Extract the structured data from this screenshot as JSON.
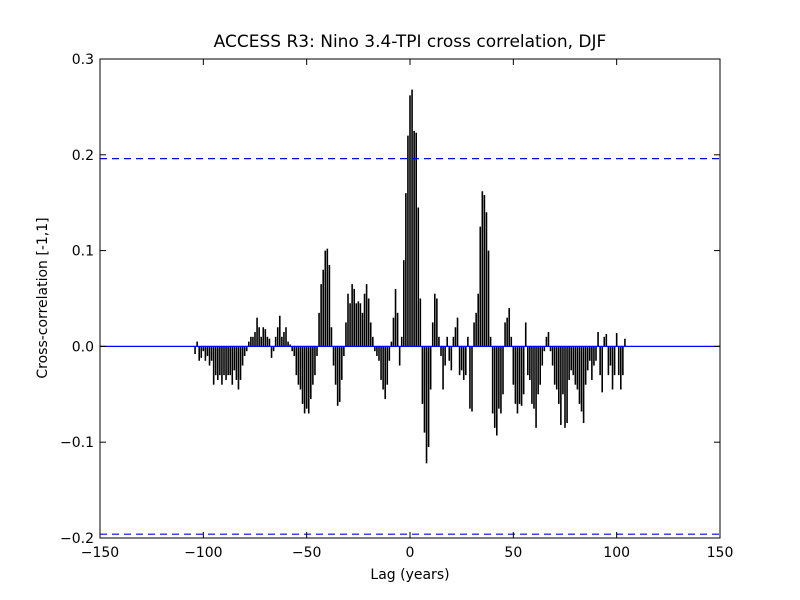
{
  "chart_data": {
    "type": "xcorr",
    "title": "ACCESS R3: Nino 3.4-TPI cross correlation, DJF",
    "xlabel": "Lag (years)",
    "ylabel": "Cross-correlation [-1,1]",
    "xlim": [
      -150,
      150
    ],
    "ylim": [
      -0.2,
      0.3
    ],
    "xticks": [
      {
        "value": -150,
        "label": "−150"
      },
      {
        "value": -100,
        "label": "−100"
      },
      {
        "value": -50,
        "label": "−50"
      },
      0,
      50,
      100,
      150
    ],
    "yticks": [
      {
        "value": -0.2,
        "label": "−0.2"
      },
      {
        "value": -0.1,
        "label": "−0.1"
      },
      {
        "value": 0,
        "label": "0.0"
      },
      0.1,
      0.2,
      0.3
    ],
    "color": "#000000",
    "hline_color": "#0000ff",
    "hlines": [
      {
        "value": 0,
        "dash": "solid"
      },
      {
        "value": 0.196,
        "dash": "dashed"
      },
      {
        "value": -0.196,
        "dash": "dashed"
      }
    ],
    "x": [
      -104,
      -103,
      -102,
      -101,
      -100,
      -99,
      -98,
      -97,
      -96,
      -95,
      -94,
      -93,
      -92,
      -91,
      -90,
      -89,
      -88,
      -87,
      -86,
      -85,
      -84,
      -83,
      -82,
      -81,
      -80,
      -79,
      -78,
      -77,
      -76,
      -75,
      -74,
      -73,
      -72,
      -71,
      -70,
      -69,
      -68,
      -67,
      -66,
      -65,
      -64,
      -63,
      -62,
      -61,
      -60,
      -59,
      -58,
      -57,
      -56,
      -55,
      -54,
      -53,
      -52,
      -51,
      -50,
      -49,
      -48,
      -47,
      -46,
      -45,
      -44,
      -43,
      -42,
      -41,
      -40,
      -39,
      -38,
      -37,
      -36,
      -35,
      -34,
      -33,
      -32,
      -31,
      -30,
      -29,
      -28,
      -27,
      -26,
      -25,
      -24,
      -23,
      -22,
      -21,
      -20,
      -19,
      -18,
      -17,
      -16,
      -15,
      -14,
      -13,
      -12,
      -11,
      -10,
      -9,
      -8,
      -7,
      -6,
      -5,
      -4,
      -3,
      -2,
      -1,
      0,
      1,
      2,
      3,
      4,
      5,
      6,
      7,
      8,
      9,
      10,
      11,
      12,
      13,
      14,
      15,
      16,
      17,
      18,
      19,
      20,
      21,
      22,
      23,
      24,
      25,
      26,
      27,
      28,
      29,
      30,
      31,
      32,
      33,
      34,
      35,
      36,
      37,
      38,
      39,
      40,
      41,
      42,
      43,
      44,
      45,
      46,
      47,
      48,
      49,
      50,
      51,
      52,
      53,
      54,
      55,
      56,
      57,
      58,
      59,
      60,
      61,
      62,
      63,
      64,
      65,
      66,
      67,
      68,
      69,
      70,
      71,
      72,
      73,
      74,
      75,
      76,
      77,
      78,
      79,
      80,
      81,
      82,
      83,
      84,
      85,
      86,
      87,
      88,
      89,
      90,
      91,
      92,
      93,
      94,
      95,
      96,
      97,
      98,
      99,
      100,
      101,
      102,
      103,
      104
    ],
    "values": [
      -0.008,
      0.005,
      -0.015,
      -0.012,
      -0.005,
      -0.015,
      -0.01,
      -0.02,
      -0.015,
      -0.04,
      -0.03,
      -0.035,
      -0.03,
      -0.04,
      -0.03,
      -0.035,
      -0.03,
      -0.03,
      -0.04,
      -0.025,
      -0.035,
      -0.045,
      -0.035,
      -0.02,
      -0.01,
      -0.005,
      0.005,
      0.01,
      0.01,
      0.015,
      0.03,
      0.02,
      0.01,
      0.02,
      0.018,
      0.01,
      0.008,
      -0.012,
      -0.005,
      0.01,
      0.02,
      0.032,
      0.01,
      0.015,
      0.02,
      0.005,
      0.002,
      -0.005,
      -0.01,
      -0.03,
      -0.04,
      -0.045,
      -0.06,
      -0.07,
      -0.065,
      -0.07,
      -0.055,
      -0.04,
      -0.03,
      -0.01,
      0.035,
      0.065,
      0.08,
      0.1,
      0.102,
      0.085,
      0.02,
      -0.02,
      -0.04,
      -0.062,
      -0.058,
      -0.035,
      -0.01,
      0.025,
      0.055,
      0.045,
      0.065,
      0.06,
      0.045,
      0.047,
      0.045,
      0.035,
      0.055,
      0.065,
      0.05,
      0.025,
      0.01,
      -0.005,
      -0.01,
      -0.015,
      -0.035,
      -0.045,
      -0.055,
      -0.04,
      -0.015,
      0.005,
      0.03,
      0.06,
      0.035,
      -0.02,
      0.01,
      0.09,
      0.16,
      0.22,
      0.262,
      0.268,
      0.225,
      0.223,
      0.145,
      0.05,
      -0.06,
      -0.09,
      -0.122,
      -0.105,
      -0.045,
      0.025,
      0.055,
      0.05,
      0.01,
      -0.01,
      -0.045,
      -0.02,
      0.01,
      -0.015,
      -0.025,
      0.01,
      0.02,
      0.03,
      -0.03,
      -0.025,
      -0.035,
      -0.03,
      0.01,
      -0.065,
      -0.068,
      0.025,
      0.035,
      0.055,
      0.125,
      0.162,
      0.158,
      0.14,
      0.1,
      0.01,
      -0.07,
      -0.085,
      -0.093,
      -0.065,
      -0.07,
      -0.05,
      0.025,
      0.03,
      0.04,
      0.01,
      -0.04,
      -0.06,
      -0.07,
      -0.06,
      -0.062,
      -0.05,
      0.025,
      -0.03,
      -0.035,
      -0.06,
      -0.065,
      -0.085,
      -0.05,
      -0.04,
      -0.02,
      -0.005,
      0.01,
      0.015,
      -0.005,
      -0.02,
      -0.04,
      -0.045,
      -0.06,
      -0.082,
      -0.05,
      -0.085,
      -0.08,
      -0.035,
      -0.025,
      -0.03,
      -0.04,
      -0.045,
      -0.06,
      -0.068,
      -0.08,
      -0.04,
      -0.025,
      -0.015,
      -0.035,
      -0.02,
      -0.015,
      0.015,
      -0.03,
      -0.048,
      0.01,
      0.013,
      -0.03,
      -0.02,
      -0.045,
      -0.03,
      0.014,
      -0.03,
      -0.045,
      -0.03,
      0.008
    ]
  }
}
